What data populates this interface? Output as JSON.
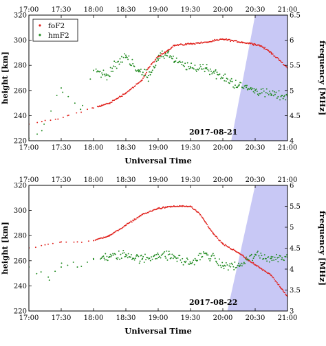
{
  "colors": {
    "foF2": "#e0201b",
    "hmF2": "#1f8a1f",
    "shade": "#c8c8f5",
    "frame": "#000000"
  },
  "chart_data": [
    {
      "type": "scatter",
      "date_label": "2017-08-21",
      "xlabel": "Universal Time",
      "ylabel_left": "height [km]",
      "ylabel_right": "frequency [MHz]",
      "x_ticks": [
        "17:00",
        "17:30",
        "18:00",
        "18:30",
        "19:00",
        "19:30",
        "20:00",
        "20:30",
        "21:00"
      ],
      "xlim_hours": [
        17,
        21
      ],
      "ylim_left": [
        220,
        320
      ],
      "yticks_left": [
        220,
        240,
        260,
        280,
        300,
        320
      ],
      "ylim_right": [
        4,
        6.5
      ],
      "yticks_right": [
        4,
        4.5,
        5,
        5.5,
        6,
        6.5
      ],
      "legend": {
        "position": "top-left",
        "entries": [
          "foF2",
          "hmF2"
        ]
      },
      "shading": {
        "top_start_hour": 20.5,
        "bottom_start_hour": 20.13
      },
      "series": [
        {
          "name": "foF2",
          "axis": "right",
          "points": [
            [
              17.0,
              4.33
            ],
            [
              17.2,
              4.38
            ],
            [
              17.45,
              4.43
            ],
            [
              17.6,
              4.5
            ],
            [
              18.0,
              4.65
            ],
            [
              18.25,
              4.75
            ],
            [
              18.5,
              4.95
            ],
            [
              18.75,
              5.2
            ],
            [
              18.85,
              5.45
            ],
            [
              19.0,
              5.67
            ],
            [
              19.15,
              5.8
            ],
            [
              19.25,
              5.9
            ],
            [
              19.5,
              5.93
            ],
            [
              19.75,
              5.96
            ],
            [
              20.0,
              6.02
            ],
            [
              20.3,
              5.96
            ],
            [
              20.5,
              5.92
            ],
            [
              20.6,
              5.88
            ],
            [
              20.75,
              5.75
            ],
            [
              21.0,
              5.45
            ]
          ]
        },
        {
          "name": "hmF2",
          "axis": "left",
          "points": [
            [
              17.0,
              222
            ],
            [
              17.2,
              228
            ],
            [
              17.5,
              262
            ],
            [
              17.8,
              245
            ],
            [
              18.0,
              276
            ],
            [
              18.2,
              272
            ],
            [
              18.5,
              288
            ],
            [
              18.7,
              275
            ],
            [
              18.85,
              272
            ],
            [
              19.0,
              285
            ],
            [
              19.15,
              290
            ],
            [
              19.25,
              283
            ],
            [
              19.5,
              278
            ],
            [
              19.75,
              278
            ],
            [
              20.0,
              270
            ],
            [
              20.25,
              264
            ],
            [
              20.5,
              260
            ],
            [
              20.75,
              257
            ],
            [
              21.0,
              255
            ]
          ]
        }
      ]
    },
    {
      "type": "scatter",
      "date_label": "2017-08-22",
      "xlabel": "Universal Time",
      "ylabel_left": "height [km]",
      "ylabel_right": "frequency [MHz]",
      "x_ticks": [
        "17:00",
        "17:30",
        "18:00",
        "18:30",
        "19:00",
        "19:30",
        "20:00",
        "20:30",
        "21:00"
      ],
      "xlim_hours": [
        17,
        21
      ],
      "ylim_left": [
        220,
        320
      ],
      "yticks_left": [
        220,
        240,
        260,
        280,
        300,
        320
      ],
      "ylim_right": [
        3,
        6
      ],
      "yticks_right": [
        3,
        3.5,
        4,
        4.5,
        5,
        5.5,
        6
      ],
      "legend": null,
      "shading": {
        "top_start_hour": 20.5,
        "bottom_start_hour": 20.07
      },
      "series": [
        {
          "name": "foF2",
          "axis": "right",
          "points": [
            [
              17.0,
              4.5
            ],
            [
              17.25,
              4.58
            ],
            [
              17.5,
              4.65
            ],
            [
              17.75,
              4.65
            ],
            [
              18.0,
              4.68
            ],
            [
              18.25,
              4.8
            ],
            [
              18.5,
              5.05
            ],
            [
              18.75,
              5.3
            ],
            [
              19.0,
              5.45
            ],
            [
              19.25,
              5.5
            ],
            [
              19.5,
              5.5
            ],
            [
              19.65,
              5.3
            ],
            [
              19.85,
              4.85
            ],
            [
              20.0,
              4.6
            ],
            [
              20.25,
              4.38
            ],
            [
              20.5,
              4.1
            ],
            [
              20.75,
              3.85
            ],
            [
              21.0,
              3.35
            ]
          ]
        },
        {
          "name": "hmF2",
          "axis": "left",
          "points": [
            [
              17.0,
              255
            ],
            [
              17.3,
              247
            ],
            [
              17.5,
              255
            ],
            [
              17.75,
              255
            ],
            [
              18.0,
              261
            ],
            [
              18.25,
              263
            ],
            [
              18.5,
              265
            ],
            [
              18.75,
              261
            ],
            [
              19.0,
              265
            ],
            [
              19.25,
              263
            ],
            [
              19.5,
              258
            ],
            [
              19.75,
              266
            ],
            [
              20.0,
              256
            ],
            [
              20.25,
              256
            ],
            [
              20.5,
              265
            ],
            [
              20.75,
              262
            ],
            [
              21.0,
              263
            ]
          ]
        }
      ]
    }
  ]
}
